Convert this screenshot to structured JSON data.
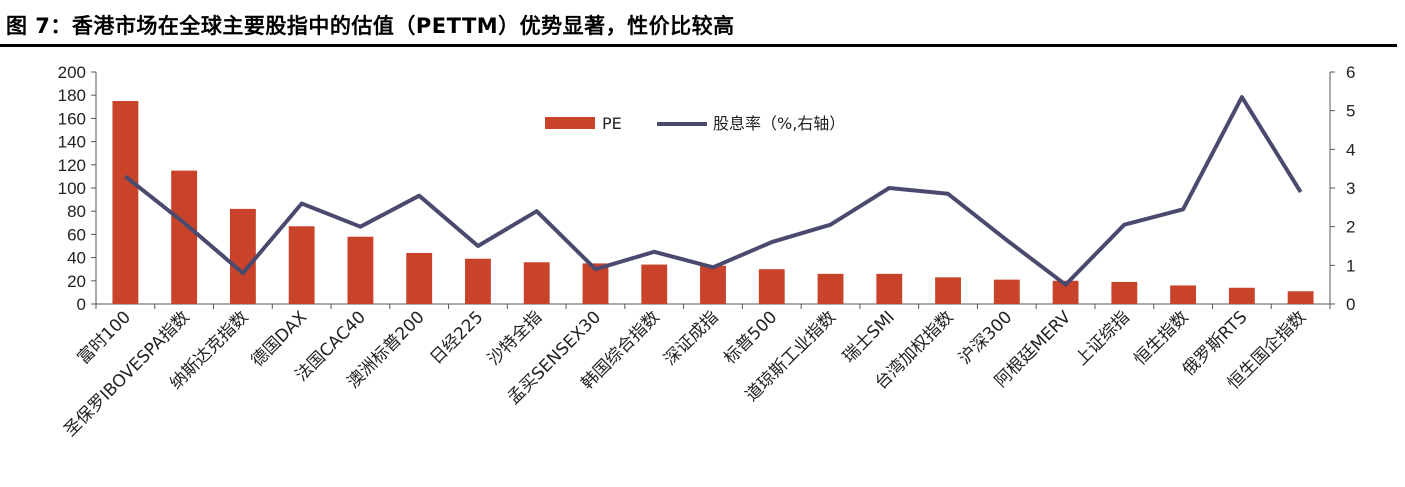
{
  "title": "图 7：香港市场在全球主要股指中的估值（PETTM）优势显著，性价比较高",
  "colors": {
    "bar": "#C9432A",
    "line": "#4A4A6E",
    "axis": "#555555"
  },
  "chart_data": {
    "type": "bar",
    "categories": [
      "富时100",
      "圣保罗IBOVESPA指数",
      "纳斯达克指数",
      "德国DAX",
      "法国CAC40",
      "澳洲标普200",
      "日经225",
      "沙特全指",
      "孟买SENSEX30",
      "韩国综合指数",
      "深证成指",
      "标普500",
      "道琼斯工业指数",
      "瑞士SMI",
      "台湾加权指数",
      "沪深300",
      "阿根廷MERV",
      "上证综指",
      "恒生指数",
      "俄罗斯RTS",
      "恒生国企指数"
    ],
    "series": [
      {
        "name": "PE",
        "type": "bar",
        "axis": "left",
        "values": [
          175,
          115,
          82,
          67,
          58,
          44,
          39,
          36,
          35,
          34,
          33,
          30,
          26,
          26,
          23,
          21,
          20,
          19,
          16,
          14,
          11
        ]
      },
      {
        "name": "股息率（%,右轴）",
        "type": "line",
        "axis": "right",
        "values": [
          3.3,
          2.1,
          0.8,
          2.6,
          2.0,
          2.8,
          1.5,
          2.4,
          0.9,
          1.35,
          0.95,
          1.6,
          2.05,
          3.0,
          2.85,
          1.65,
          0.5,
          2.05,
          2.45,
          5.35,
          2.9
        ]
      }
    ],
    "y_left": {
      "range": [
        0,
        200
      ],
      "ticks": [
        "0",
        "20",
        "40",
        "60",
        "80",
        "100",
        "120",
        "140",
        "160",
        "180",
        "200"
      ]
    },
    "y_right": {
      "range": [
        0,
        6
      ],
      "ticks": [
        "0",
        "1",
        "2",
        "3",
        "4",
        "5",
        "6"
      ]
    },
    "legend": "top-center",
    "grid": false
  }
}
